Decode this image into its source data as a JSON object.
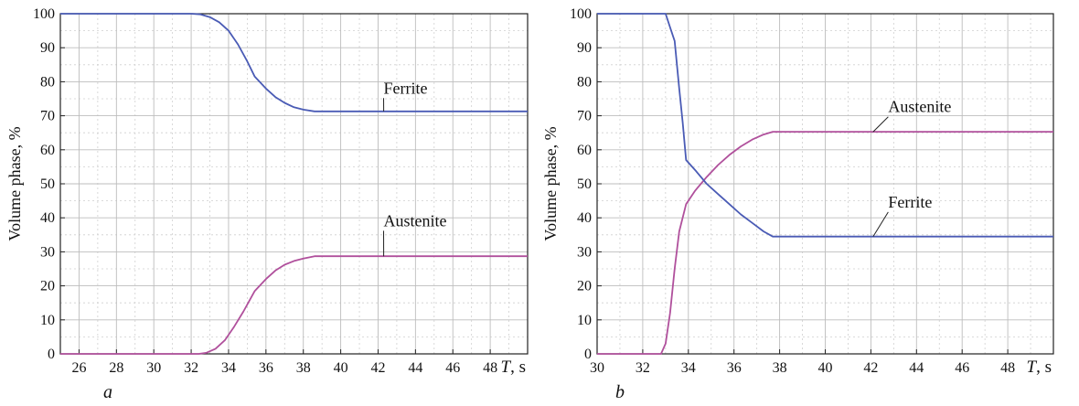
{
  "chart_data": [
    {
      "type": "line",
      "panel_label": "a",
      "xlabel_var": "T",
      "xlabel_unit": ", s",
      "ylabel": "Volume phase, %",
      "xlim": [
        25,
        50
      ],
      "ylim": [
        0,
        100
      ],
      "xticks": [
        26,
        28,
        30,
        32,
        34,
        36,
        38,
        40,
        42,
        44,
        46,
        48
      ],
      "yticks": [
        0,
        10,
        20,
        30,
        40,
        50,
        60,
        70,
        80,
        90,
        100
      ],
      "grid": true,
      "series": [
        {
          "name": "Ferrite",
          "color": "#4a5bb5",
          "label_at": [
            42.3,
            71.3
          ],
          "label_text_pos": [
            42.1,
            76
          ],
          "points": [
            [
              25,
              100
            ],
            [
              32,
              100
            ],
            [
              32.5,
              99.8
            ],
            [
              33,
              99
            ],
            [
              33.5,
              97.5
            ],
            [
              34,
              95
            ],
            [
              34.5,
              91
            ],
            [
              35,
              86
            ],
            [
              35.4,
              81.5
            ],
            [
              36,
              78
            ],
            [
              36.5,
              75.5
            ],
            [
              37,
              73.8
            ],
            [
              37.5,
              72.5
            ],
            [
              38,
              71.8
            ],
            [
              38.6,
              71.3
            ],
            [
              42,
              71.3
            ],
            [
              50,
              71.3
            ]
          ]
        },
        {
          "name": "Austenite",
          "color": "#b0509c",
          "label_at": [
            42.3,
            28.7
          ],
          "label_text_pos": [
            42.1,
            37
          ],
          "points": [
            [
              25,
              0
            ],
            [
              32.4,
              0
            ],
            [
              32.8,
              0.3
            ],
            [
              33.3,
              1.5
            ],
            [
              33.8,
              4
            ],
            [
              34.3,
              8
            ],
            [
              34.8,
              12.5
            ],
            [
              35.4,
              18.5
            ],
            [
              36,
              22
            ],
            [
              36.5,
              24.5
            ],
            [
              37,
              26.2
            ],
            [
              37.5,
              27.3
            ],
            [
              38,
              28
            ],
            [
              38.6,
              28.7
            ],
            [
              42,
              28.7
            ],
            [
              50,
              28.7
            ]
          ]
        }
      ]
    },
    {
      "type": "line",
      "panel_label": "b",
      "xlabel_var": "T",
      "xlabel_unit": ", s",
      "ylabel": "Volume phase, %",
      "xlim": [
        30,
        50
      ],
      "ylim": [
        0,
        100
      ],
      "xticks": [
        30,
        32,
        34,
        36,
        38,
        40,
        42,
        44,
        46,
        48
      ],
      "yticks": [
        0,
        10,
        20,
        30,
        40,
        50,
        60,
        70,
        80,
        90,
        100
      ],
      "grid": true,
      "series": [
        {
          "name": "Austenite",
          "color": "#b0509c",
          "label_at": [
            42.1,
            65.3
          ],
          "label_text_pos": [
            42.6,
            70.5
          ],
          "points": [
            [
              30,
              0
            ],
            [
              32.8,
              0
            ],
            [
              33,
              3
            ],
            [
              33.2,
              12
            ],
            [
              33.4,
              25
            ],
            [
              33.6,
              36
            ],
            [
              33.9,
              44
            ],
            [
              34.3,
              48
            ],
            [
              34.8,
              52
            ],
            [
              35.3,
              55.5
            ],
            [
              35.8,
              58.5
            ],
            [
              36.3,
              61
            ],
            [
              36.8,
              63
            ],
            [
              37.3,
              64.5
            ],
            [
              37.7,
              65.3
            ],
            [
              42,
              65.3
            ],
            [
              50,
              65.3
            ]
          ]
        },
        {
          "name": "Ferrite",
          "color": "#4a5bb5",
          "label_at": [
            42.1,
            34.5
          ],
          "label_text_pos": [
            42.6,
            42.5
          ],
          "points": [
            [
              30,
              100
            ],
            [
              33,
              100
            ],
            [
              33.2,
              96
            ],
            [
              33.4,
              92
            ],
            [
              33.6,
              78
            ],
            [
              33.75,
              68
            ],
            [
              33.9,
              57
            ],
            [
              34.3,
              54
            ],
            [
              34.8,
              50
            ],
            [
              35.3,
              47
            ],
            [
              35.8,
              44
            ],
            [
              36.3,
              41
            ],
            [
              36.8,
              38.5
            ],
            [
              37.3,
              36
            ],
            [
              37.7,
              34.5
            ],
            [
              42,
              34.5
            ],
            [
              50,
              34.5
            ]
          ]
        }
      ]
    }
  ]
}
